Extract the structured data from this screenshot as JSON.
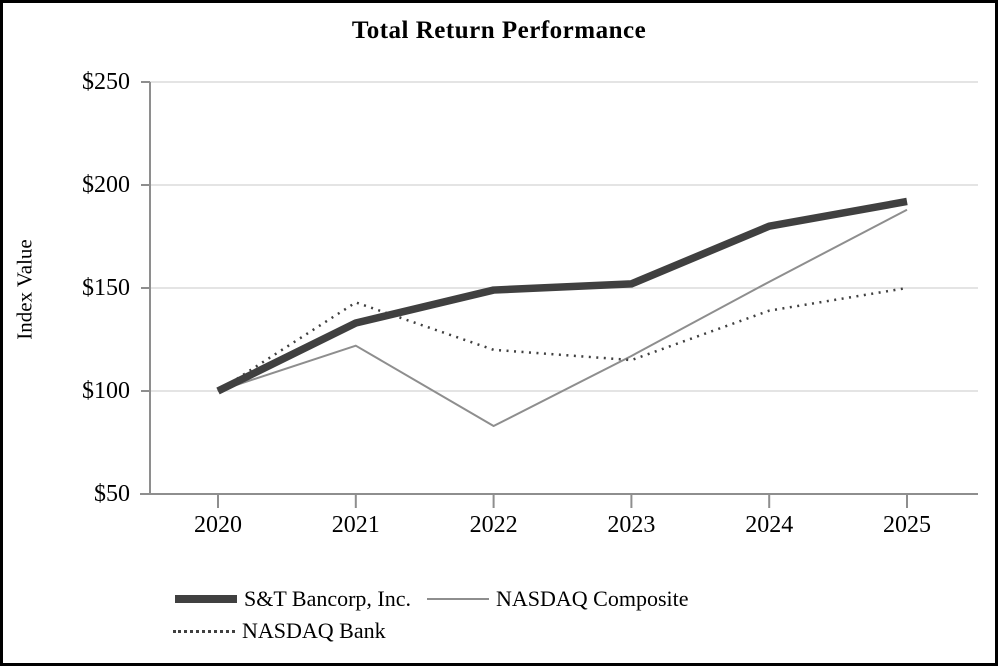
{
  "chart_data": {
    "type": "line",
    "title": "Total Return Performance",
    "ylabel": "Index Value",
    "xlabel": "",
    "categories": [
      "2020",
      "2021",
      "2022",
      "2023",
      "2024",
      "2025"
    ],
    "series": [
      {
        "name": "S&T Bancorp, Inc.",
        "values": [
          100,
          133,
          149,
          152,
          180,
          192
        ],
        "style": "thick-solid",
        "color": "#404040",
        "stroke_width": 7.5
      },
      {
        "name": "NASDAQ Composite",
        "values": [
          100,
          122,
          83,
          117,
          153,
          188
        ],
        "style": "thin-solid",
        "color": "#8e8e8e",
        "stroke_width": 2
      },
      {
        "name": "NASDAQ Bank",
        "values": [
          100,
          143,
          120,
          115,
          139,
          150
        ],
        "style": "dotted",
        "color": "#404040",
        "stroke_width": 2.5
      }
    ],
    "y_tick_labels": [
      "$50",
      "$100",
      "$150",
      "$200",
      "$250"
    ],
    "y_tick_values": [
      50,
      100,
      150,
      200,
      250
    ],
    "ylim": [
      50,
      250
    ],
    "grid": "horizontal-only",
    "legend_position": "bottom-left"
  },
  "colors": {
    "grid": "#dcdcdc",
    "axis": "#8e8e8e",
    "text": "#000000",
    "frame": "#000000",
    "background": "#ffffff"
  }
}
